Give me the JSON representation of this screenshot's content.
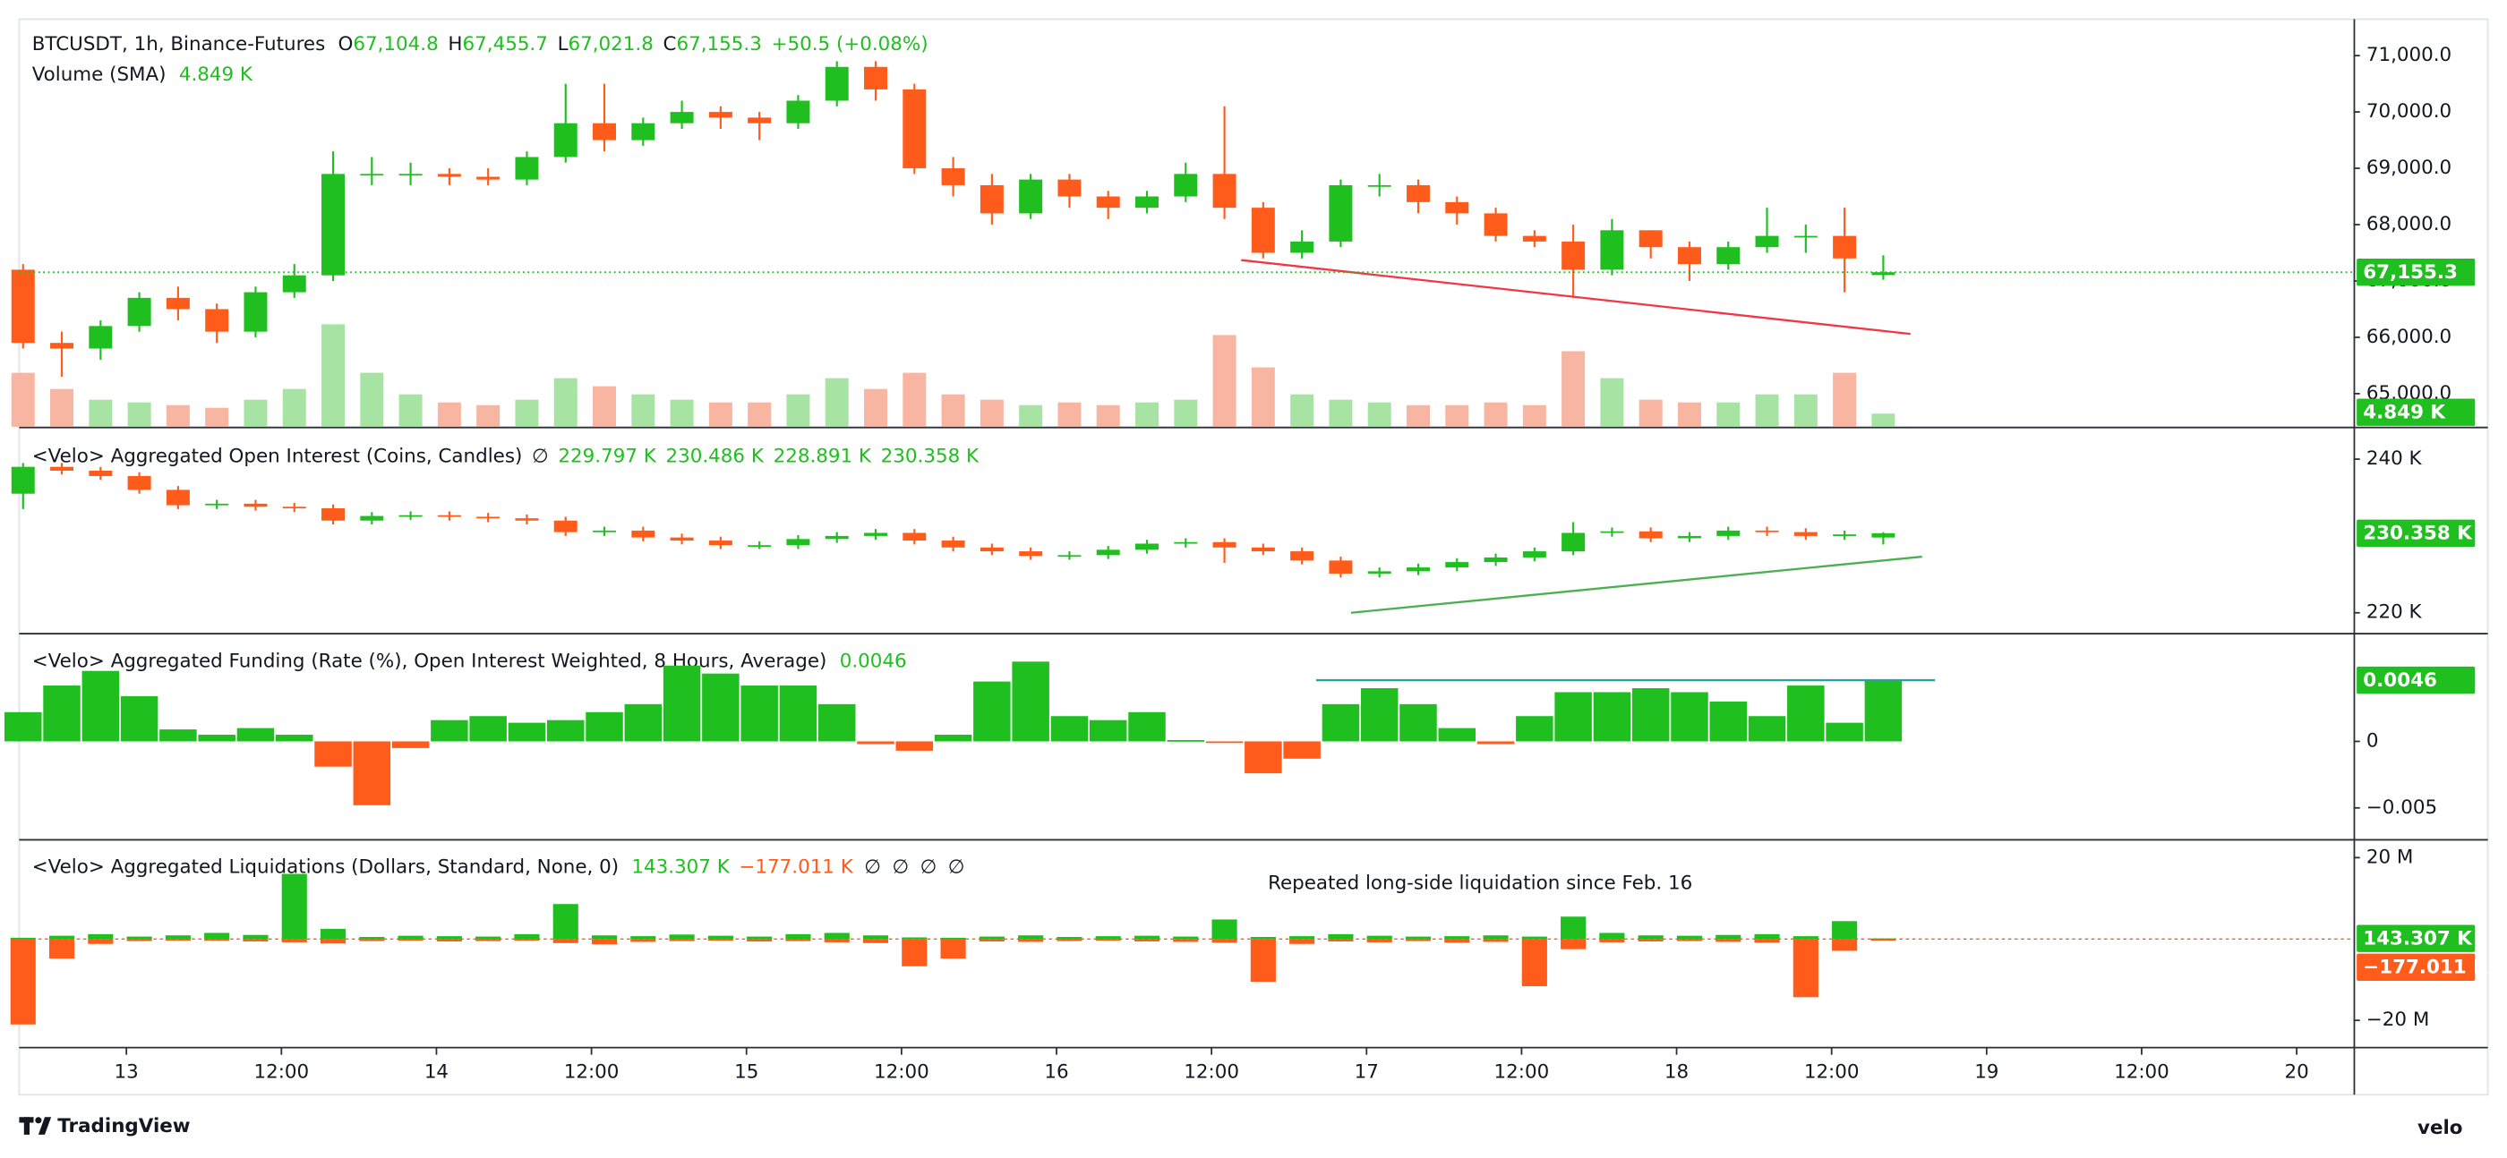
{
  "chart_data": [
    {
      "type": "candlestick",
      "title": "BTCUSDT, 1h, Binance-Futures",
      "ohlc_keys": [
        "O",
        "H",
        "L",
        "C"
      ],
      "last_labels": [
        "67,104.8",
        "67,455.7",
        "67,021.8",
        "67,155.3"
      ],
      "change_label": "+50.5 (+0.08%)",
      "up_color": "#1fbf1f",
      "down_color": "#ff5b1a",
      "xlim": [
        -8.3,
        172.4
      ],
      "x": [
        -8,
        -5,
        -2,
        1,
        4,
        7,
        10,
        13,
        16,
        19,
        22,
        25,
        28,
        31,
        34,
        37,
        40,
        43,
        46,
        49,
        52,
        55,
        58,
        61,
        64,
        67,
        70,
        73,
        76,
        79,
        82,
        85,
        88,
        91,
        94,
        97,
        100,
        103,
        106,
        109,
        112,
        115,
        118,
        121,
        124,
        127,
        130,
        133,
        136
      ],
      "open": [
        67200,
        65900,
        65800,
        66200,
        66700,
        66500,
        66100,
        66800,
        67100,
        68900,
        68900,
        68900,
        68850,
        68800,
        69200,
        69800,
        69500,
        69800,
        70000,
        69900,
        69800,
        70200,
        70800,
        70400,
        69000,
        68700,
        68200,
        68800,
        68500,
        68300,
        68500,
        68900,
        68300,
        67500,
        67700,
        68700,
        68700,
        68400,
        68200,
        67800,
        67700,
        67200,
        67900,
        67600,
        67300,
        67600,
        67800,
        67800,
        67104.8
      ],
      "high": [
        67300,
        66100,
        66300,
        66800,
        66900,
        66600,
        66900,
        67300,
        69300,
        69200,
        69100,
        69000,
        69000,
        69300,
        70500,
        70500,
        69900,
        70200,
        70100,
        70000,
        70300,
        70900,
        70900,
        70500,
        69200,
        68900,
        68900,
        68900,
        68600,
        68600,
        69100,
        70100,
        68400,
        67900,
        68800,
        68900,
        68800,
        68500,
        68300,
        67900,
        68000,
        68100,
        67900,
        67700,
        67700,
        68300,
        68000,
        68300,
        67455.7
      ],
      "low": [
        65800,
        65300,
        65600,
        66100,
        66300,
        65900,
        66000,
        66700,
        67000,
        68700,
        68700,
        68700,
        68700,
        68700,
        69100,
        69300,
        69400,
        69700,
        69700,
        69500,
        69700,
        70100,
        70200,
        68900,
        68500,
        68000,
        68100,
        68300,
        68100,
        68200,
        68400,
        68100,
        67400,
        67400,
        67600,
        68500,
        68200,
        68000,
        67700,
        67600,
        66700,
        67100,
        67400,
        67000,
        67200,
        67500,
        67500,
        66800,
        67021.8
      ],
      "close": [
        65900,
        65800,
        66200,
        66700,
        66500,
        66100,
        66800,
        67100,
        68900,
        68900,
        68900,
        68850,
        68800,
        69200,
        69800,
        69500,
        69800,
        70000,
        69900,
        69800,
        70200,
        70800,
        70400,
        69000,
        68700,
        68200,
        68800,
        68500,
        68300,
        68500,
        68900,
        68300,
        67500,
        67700,
        68700,
        68700,
        68400,
        68200,
        67800,
        67700,
        67200,
        67900,
        67600,
        67300,
        67600,
        67800,
        67800,
        67400,
        67155.3
      ],
      "ylim": [
        64470,
        71590
      ],
      "yticks": [
        {
          "value": 65000,
          "label": "65,000.0"
        },
        {
          "value": 66000,
          "label": "66,000.0"
        },
        {
          "value": 67000,
          "label": "67,000.0"
        },
        {
          "value": 68000,
          "label": "68,000.0"
        },
        {
          "value": 69000,
          "label": "69,000.0"
        },
        {
          "value": 70000,
          "label": "70,000.0"
        },
        {
          "value": 71000,
          "label": "71,000.0"
        }
      ],
      "volume": {
        "name": "Volume (SMA)",
        "value_label": "4.849 K",
        "ylim": [
          0,
          150
        ],
        "up_color": "#a7e4a3",
        "down_color": "#f7b5a2",
        "values": [
          20,
          14,
          10,
          9,
          8,
          7,
          10,
          14,
          38,
          20,
          12,
          9,
          8,
          10,
          18,
          15,
          12,
          10,
          9,
          9,
          12,
          18,
          14,
          20,
          12,
          10,
          8,
          9,
          8,
          9,
          10,
          34,
          22,
          12,
          10,
          9,
          8,
          8,
          9,
          8,
          28,
          18,
          10,
          9,
          9,
          12,
          12,
          20,
          4.849
        ]
      },
      "trendline": {
        "x": [
          86.3,
          138.1
        ],
        "y": [
          67370,
          66060
        ],
        "color": "#f23645"
      }
    },
    {
      "type": "candlestick",
      "title": "<Velo> Aggregated Open Interest (Coins, Candles)",
      "symbol": "∅",
      "last_labels": [
        "229.797 K",
        "230.486 K",
        "228.891 K",
        "230.358 K"
      ],
      "up_color": "#1fbf1f",
      "down_color": "#ff5b1a",
      "xlim": [
        -8.3,
        172.4
      ],
      "x": [
        -8,
        -5,
        -2,
        1,
        4,
        7,
        10,
        13,
        16,
        19,
        22,
        25,
        28,
        31,
        34,
        37,
        40,
        43,
        46,
        49,
        52,
        55,
        58,
        61,
        64,
        67,
        70,
        73,
        76,
        79,
        82,
        85,
        88,
        91,
        94,
        97,
        100,
        103,
        106,
        109,
        112,
        115,
        118,
        121,
        124,
        127,
        130,
        133,
        136
      ],
      "open": [
        235.5,
        239,
        238.5,
        237.8,
        236,
        234,
        234.2,
        233.8,
        233.6,
        232,
        232.6,
        232.7,
        232.5,
        232.3,
        232,
        230.5,
        230.7,
        229.8,
        229.4,
        228.8,
        228.8,
        229.6,
        230,
        230.4,
        229.4,
        228.5,
        228,
        227.4,
        227.5,
        228.2,
        229,
        229.2,
        228.5,
        228,
        226.8,
        225.1,
        225.4,
        225.9,
        226.6,
        227.2,
        228,
        230.4,
        230.6,
        229.7,
        230,
        230.7,
        230.5,
        230,
        229.797
      ],
      "high": [
        239.5,
        239.5,
        239,
        238.3,
        236.5,
        234.7,
        234.7,
        234.3,
        234.1,
        233.1,
        233.2,
        233.2,
        233,
        232.8,
        232.5,
        231.2,
        231.2,
        230.3,
        229.9,
        229.3,
        230.1,
        230.5,
        230.9,
        230.9,
        229.9,
        229,
        228.5,
        228,
        228.7,
        229.5,
        229.7,
        229.7,
        229,
        228.5,
        227.3,
        225.9,
        226.4,
        227.1,
        227.7,
        228.5,
        231.8,
        231.1,
        231.1,
        230.5,
        231.2,
        231.2,
        231,
        230.7,
        230.486
      ],
      "low": [
        233.5,
        238,
        237.3,
        235.5,
        233.5,
        233.5,
        233.3,
        233.1,
        231.5,
        231.5,
        232.1,
        232,
        231.8,
        231.5,
        230,
        230,
        229.3,
        228.9,
        228.3,
        228.3,
        228.3,
        229.1,
        229.5,
        228.9,
        228,
        227.5,
        226.9,
        226.9,
        227,
        227.7,
        228.5,
        226.5,
        227.5,
        226.3,
        224.6,
        224.6,
        224.9,
        225.4,
        226.1,
        226.7,
        227.5,
        229.9,
        229.2,
        229.2,
        229.5,
        230,
        229.5,
        229.5,
        228.891
      ],
      "close": [
        239,
        238.5,
        237.8,
        236,
        234,
        234.2,
        233.8,
        233.6,
        232,
        232.6,
        232.7,
        232.5,
        232.3,
        232,
        230.5,
        230.7,
        229.8,
        229.4,
        228.8,
        228.8,
        229.6,
        230,
        230.4,
        229.4,
        228.5,
        228,
        227.4,
        227.5,
        228.2,
        229,
        229.2,
        228.5,
        228,
        226.8,
        225.1,
        225.4,
        225.9,
        226.6,
        227.2,
        228,
        230.4,
        230.6,
        229.7,
        230,
        230.7,
        230.5,
        230,
        230.2,
        230.358
      ],
      "ylim": [
        217.8,
        243.6
      ],
      "yticks": [
        {
          "value": 220,
          "label": "220 K"
        },
        {
          "value": 240,
          "label": "240 K"
        }
      ],
      "trendline": {
        "x": [
          94.8,
          139
        ],
        "y": [
          220,
          227.3
        ],
        "color": "#4caf50"
      }
    },
    {
      "type": "bar",
      "title": "<Velo> Aggregated Funding (Rate (%), Open Interest Weighted, 8 Hours, Average)",
      "value_label": "0.0046",
      "up_color": "#1fbf1f",
      "down_color": "#ff5b1a",
      "xlim": [
        -8.3,
        172.4
      ],
      "x": [
        -8,
        -5,
        -2,
        1,
        4,
        7,
        10,
        13,
        16,
        19,
        22,
        25,
        28,
        31,
        34,
        37,
        40,
        43,
        46,
        49,
        52,
        55,
        58,
        61,
        64,
        67,
        70,
        73,
        76,
        79,
        82,
        85,
        88,
        91,
        94,
        97,
        100,
        103,
        106,
        109,
        112,
        115,
        118,
        121,
        124,
        127,
        130,
        133,
        136
      ],
      "values": [
        0.0022,
        0.0042,
        0.0053,
        0.0034,
        0.0009,
        0.0005,
        0.001,
        0.0005,
        -0.0019,
        -0.0048,
        -0.0005,
        0.0016,
        0.0019,
        0.0014,
        0.0016,
        0.0022,
        0.0028,
        0.0057,
        0.0051,
        0.0042,
        0.0042,
        0.0028,
        -0.0002,
        -0.0007,
        0.0005,
        0.0045,
        0.006,
        0.0019,
        0.0016,
        0.0022,
        0.0001,
        -0.0001,
        -0.0024,
        -0.0013,
        0.0028,
        0.004,
        0.0028,
        0.001,
        -0.0002,
        0.0019,
        0.0037,
        0.0037,
        0.004,
        0.0037,
        0.003,
        0.0019,
        0.0042,
        0.0014,
        0.0046
      ],
      "ylim": [
        -0.0071,
        0.0078
      ],
      "yticks": [
        {
          "value": -0.005,
          "label": "−0.005"
        },
        0
      ],
      "level_line": {
        "x": [
          92.1,
          140
        ],
        "y": [
          0.0046,
          0.0046
        ],
        "color": "#26a69a"
      }
    },
    {
      "type": "bar",
      "title": "<Velo> Aggregated Liquidations (Dollars, Standard, None, 0)",
      "extra_labels": [
        "∅",
        "∅",
        "∅",
        "∅"
      ],
      "annotation": "Repeated long-side liquidation since Feb. 16",
      "xlim": [
        -8.3,
        172.4
      ],
      "xticks": [
        {
          "value": 0,
          "label": "13"
        },
        {
          "value": 12,
          "label": "12:00"
        },
        {
          "value": 24,
          "label": "14"
        },
        {
          "value": 36,
          "label": "12:00"
        },
        {
          "value": 48,
          "label": "15"
        },
        {
          "value": 60,
          "label": "12:00"
        },
        {
          "value": 72,
          "label": "16"
        },
        {
          "value": 84,
          "label": "12:00"
        },
        {
          "value": 96,
          "label": "17"
        },
        {
          "value": 108,
          "label": "12:00"
        },
        {
          "value": 120,
          "label": "18"
        },
        {
          "value": 132,
          "label": "12:00"
        },
        {
          "value": 144,
          "label": "19"
        },
        {
          "value": 156,
          "label": "12:00"
        },
        {
          "value": 168,
          "label": "20"
        }
      ],
      "x": [
        -8,
        -5,
        -2,
        1,
        4,
        7,
        10,
        13,
        16,
        19,
        22,
        25,
        28,
        31,
        34,
        37,
        40,
        43,
        46,
        49,
        52,
        55,
        58,
        61,
        64,
        67,
        70,
        73,
        76,
        79,
        82,
        85,
        88,
        91,
        94,
        97,
        100,
        103,
        106,
        109,
        112,
        115,
        118,
        121,
        124,
        127,
        130,
        133,
        136
      ],
      "series": [
        {
          "color": "#1fbf1f",
          "value_label": "143.307 K",
          "values": [
            300000,
            800000,
            1200000,
            600000,
            900000,
            1500000,
            1000000,
            16000000,
            2500000,
            500000,
            800000,
            700000,
            600000,
            1200000,
            8600000,
            900000,
            700000,
            1100000,
            800000,
            600000,
            1200000,
            1500000,
            900000,
            400000,
            300000,
            600000,
            900000,
            500000,
            700000,
            800000,
            600000,
            4800000,
            500000,
            700000,
            1200000,
            800000,
            600000,
            700000,
            900000,
            600000,
            5500000,
            1500000,
            900000,
            800000,
            1000000,
            1200000,
            700000,
            4400000,
            143307
          ]
        },
        {
          "color": "#ff5b1a",
          "value_label": "−177.011 K",
          "values": [
            -21000000,
            -4800000,
            -1200000,
            -500000,
            -300000,
            -400000,
            -600000,
            -800000,
            -1100000,
            -500000,
            -400000,
            -600000,
            -500000,
            -400000,
            -1000000,
            -1300000,
            -700000,
            -500000,
            -400000,
            -600000,
            -500000,
            -800000,
            -1000000,
            -6700000,
            -4800000,
            -600000,
            -700000,
            -500000,
            -400000,
            -600000,
            -700000,
            -900000,
            -10500000,
            -1200000,
            -600000,
            -800000,
            -500000,
            -900000,
            -700000,
            -11600000,
            -2500000,
            -800000,
            -600000,
            -500000,
            -700000,
            -900000,
            -14300000,
            -2900000,
            -177011
          ]
        }
      ],
      "ylim": [
        -25700000,
        23400000
      ],
      "yticks": [
        {
          "value": -20000000,
          "label": "−20 M"
        },
        {
          "value": 20000000,
          "label": "20 M"
        }
      ]
    }
  ],
  "footer": {
    "brand": "TradingView",
    "watermark": "velo"
  }
}
